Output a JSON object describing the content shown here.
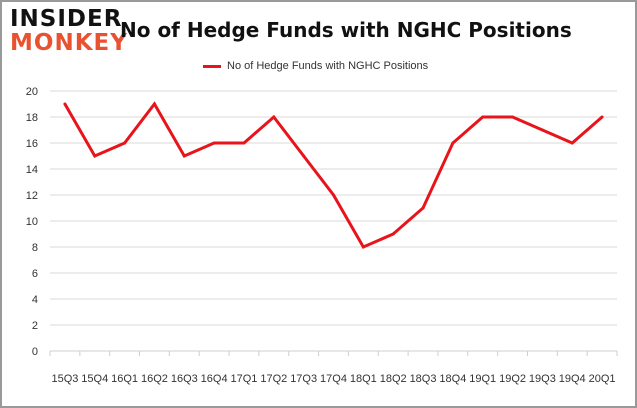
{
  "logo": {
    "line1": "INSIDER",
    "line2": "MONKEY"
  },
  "colors": {
    "series": "#e8141b",
    "grid": "#d9d9d9",
    "logo_dark": "#121212",
    "logo_accent": "#e85230"
  },
  "chart_data": {
    "type": "line",
    "title": "No of Hedge Funds with NGHC Positions",
    "xlabel": "",
    "ylabel": "",
    "x_tick_labels": [
      "15Q3",
      "15Q4",
      "16Q1",
      "16Q2",
      "16Q3",
      "16Q4",
      "17Q1",
      "17Q2",
      "17Q3",
      "17Q4",
      "18Q1",
      "18Q2",
      "18Q3",
      "18Q4",
      "19Q1",
      "19Q2",
      "19Q3",
      "19Q4",
      "20Q1"
    ],
    "categories": [
      "15Q3",
      "15Q4",
      "16Q1",
      "16Q2",
      "16Q3",
      "16Q4",
      "17Q1",
      "17Q2",
      "17Q3",
      "17Q4",
      "18Q1",
      "18Q2",
      "18Q3",
      "18Q4",
      "19Q1",
      "19Q2",
      "19Q3",
      "19Q4",
      "20Q1"
    ],
    "series": [
      {
        "name": "No of Hedge Funds with NGHC Positions",
        "values": [
          19,
          15,
          16,
          19,
          15,
          16,
          16,
          18,
          15,
          12,
          8,
          9,
          11,
          16,
          18,
          18,
          17,
          16,
          18
        ]
      }
    ],
    "ylim": [
      0,
      20
    ],
    "y_ticks": [
      0,
      2,
      4,
      6,
      8,
      10,
      12,
      14,
      16,
      18,
      20
    ],
    "grid": true,
    "legend_position": "top-center"
  }
}
